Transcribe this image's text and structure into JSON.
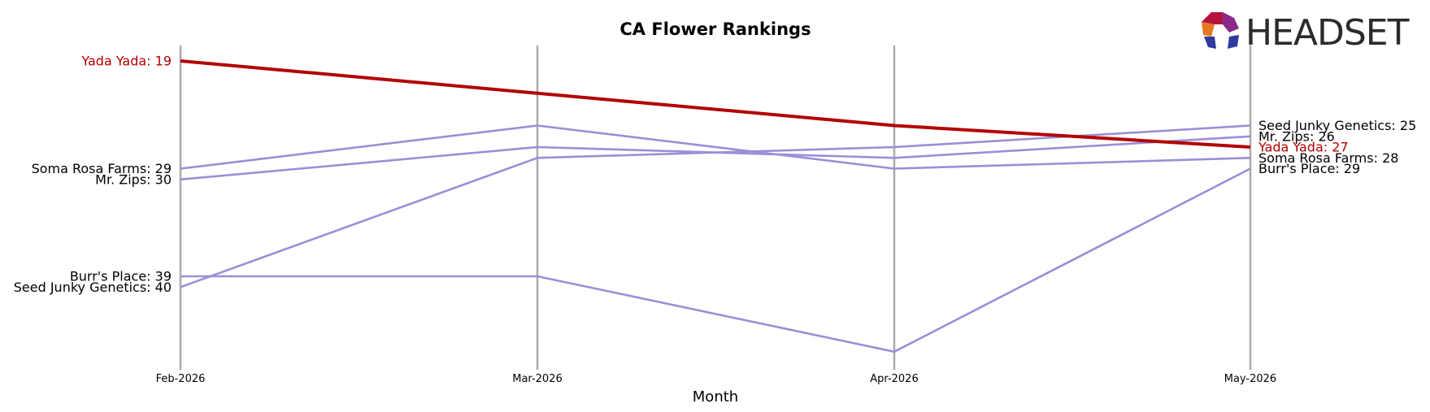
{
  "chart_data": {
    "type": "line",
    "title": "CA Flower Rankings",
    "xlabel": "Month",
    "ylabel": "",
    "x": [
      "Feb-2026",
      "Mar-2026",
      "Apr-2026",
      "May-2026"
    ],
    "y_inverted": true,
    "ylim": [
      17,
      47
    ],
    "grid": "vertical lines at each month",
    "highlight_color": "#b30000",
    "other_color": "#9a8fd8",
    "gridline_color": "#aaaaaa",
    "series": [
      {
        "name": "Yada Yada",
        "values": [
          19,
          22,
          25,
          27
        ],
        "highlight": true
      },
      {
        "name": "Seed Junky Genetics",
        "values": [
          40,
          28,
          27,
          25
        ],
        "highlight": false
      },
      {
        "name": "Mr. Zips",
        "values": [
          30,
          27,
          28,
          26
        ],
        "highlight": false
      },
      {
        "name": "Soma Rosa Farms",
        "values": [
          29,
          25,
          29,
          28
        ],
        "highlight": false
      },
      {
        "name": "Burr's Place",
        "values": [
          39,
          39,
          46,
          29
        ],
        "highlight": false
      }
    ],
    "left_labels": [
      {
        "text": "Yada Yada: 19",
        "highlight": true,
        "value": 19
      },
      {
        "text": "Soma Rosa Farms: 29",
        "highlight": false,
        "value": 29
      },
      {
        "text": "Mr. Zips: 30",
        "highlight": false,
        "value": 30
      },
      {
        "text": "Burr's Place: 39",
        "highlight": false,
        "value": 39
      },
      {
        "text": "Seed Junky Genetics: 40",
        "highlight": false,
        "value": 40
      }
    ],
    "right_labels": [
      {
        "text": "Seed Junky Genetics: 25",
        "highlight": false,
        "value": 25
      },
      {
        "text": "Mr. Zips: 26",
        "highlight": false,
        "value": 26
      },
      {
        "text": "Yada Yada: 27",
        "highlight": true,
        "value": 27
      },
      {
        "text": "Soma Rosa Farms: 28",
        "highlight": false,
        "value": 28
      },
      {
        "text": "Burr's Place: 29",
        "highlight": false,
        "value": 29
      }
    ]
  },
  "logo": {
    "text": "HEADSET",
    "icon": "headset-logo-icon"
  }
}
